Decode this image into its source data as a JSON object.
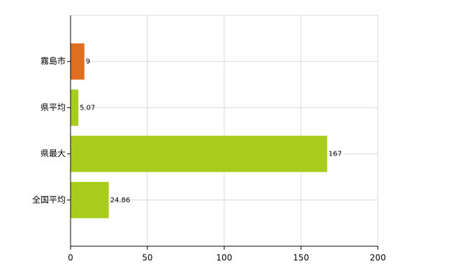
{
  "chart_data": {
    "type": "barh",
    "categories": [
      "霧島市",
      "県平均",
      "県最大",
      "全国平均"
    ],
    "values": [
      9,
      5.07,
      167,
      24.86
    ],
    "colors": [
      "#e07020",
      "#a8cc1c",
      "#a8cc1c",
      "#a8cc1c"
    ],
    "xlim": [
      0,
      200
    ],
    "xticks": [
      0,
      50,
      100,
      150,
      200
    ],
    "grid": true
  }
}
